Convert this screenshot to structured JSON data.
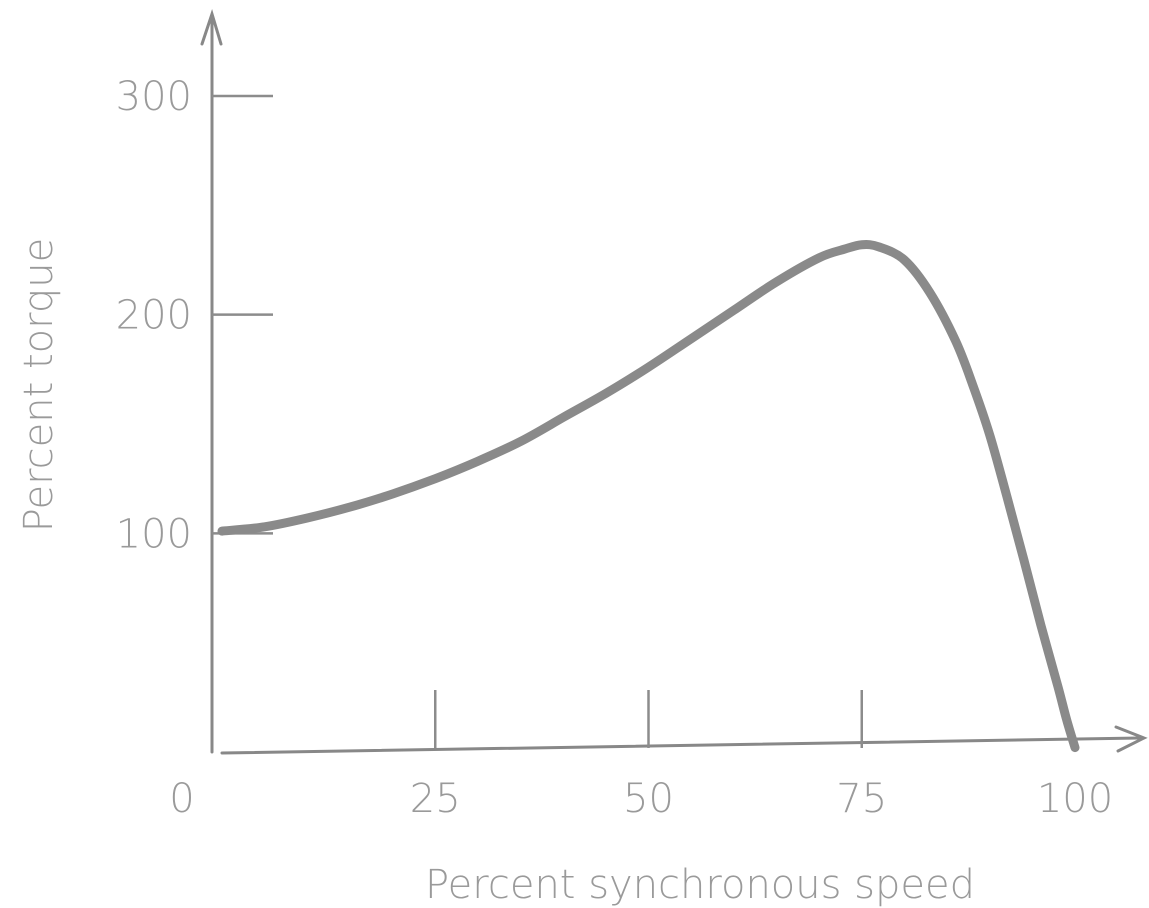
{
  "chart_data": {
    "type": "line",
    "title": "",
    "xlabel": "Percent synchronous speed",
    "ylabel": "Percent torque",
    "xlim": [
      0,
      100
    ],
    "ylim": [
      0,
      300
    ],
    "x_ticks": [
      {
        "value": 0,
        "label": "0"
      },
      {
        "value": 25,
        "label": "25"
      },
      {
        "value": 50,
        "label": "50"
      },
      {
        "value": 75,
        "label": "75"
      },
      {
        "value": 100,
        "label": "100"
      }
    ],
    "y_ticks": [
      {
        "value": 100,
        "label": "100"
      },
      {
        "value": 200,
        "label": "200"
      },
      {
        "value": 300,
        "label": "300"
      }
    ],
    "grid": false,
    "series": [
      {
        "color": "#8a8a8a",
        "x": [
          0,
          5,
          10,
          15,
          20,
          25,
          30,
          35,
          40,
          45,
          50,
          55,
          60,
          65,
          70,
          73,
          75,
          77,
          80,
          83,
          86,
          88,
          90,
          92,
          94,
          96,
          98,
          99,
          100
        ],
        "y": [
          101,
          103,
          107,
          112,
          118,
          125,
          133,
          142,
          153,
          164,
          176,
          189,
          202,
          215,
          226,
          230,
          232,
          231,
          225,
          210,
          188,
          168,
          145,
          117,
          88,
          58,
          30,
          15,
          2
        ]
      }
    ]
  }
}
